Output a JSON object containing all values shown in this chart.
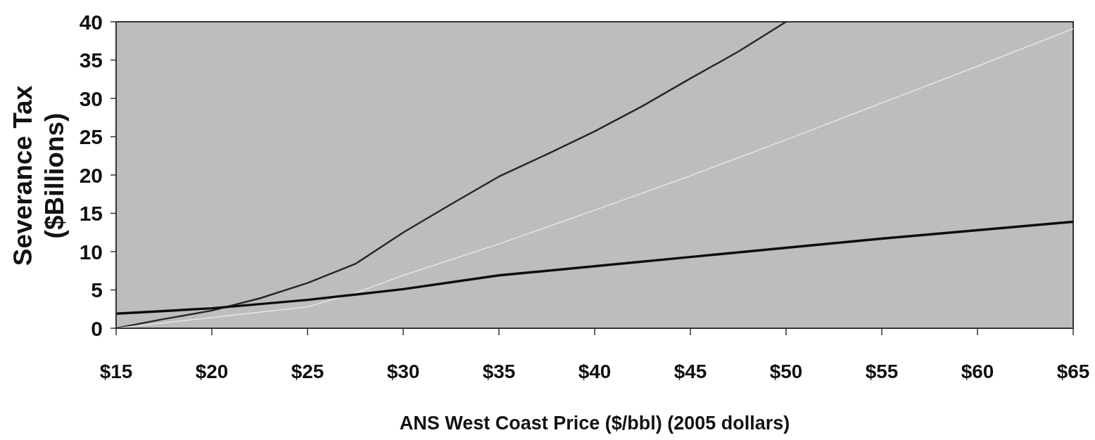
{
  "chart_data": {
    "type": "line",
    "xlabel": "ANS West Coast Price ($/bbl) (2005 dollars)",
    "ylabel": "Severance Tax\n($Billions)",
    "xlim": [
      15,
      65
    ],
    "xticks": [
      {
        "value": 15,
        "label": "$15"
      },
      {
        "value": 20,
        "label": "$20"
      },
      {
        "value": 25,
        "label": "$25"
      },
      {
        "value": 30,
        "label": "$30"
      },
      {
        "value": 35,
        "label": "$35"
      },
      {
        "value": 40,
        "label": "$40"
      },
      {
        "value": 45,
        "label": "$45"
      },
      {
        "value": 50,
        "label": "$50"
      },
      {
        "value": 55,
        "label": "$55"
      },
      {
        "value": 60,
        "label": "$60"
      },
      {
        "value": 65,
        "label": "$65"
      }
    ],
    "ylim": [
      0,
      40
    ],
    "yticks": [
      0,
      5,
      10,
      15,
      20,
      25,
      30,
      35,
      40
    ],
    "series": [
      {
        "color": "#262626",
        "x": [
          15,
          17.5,
          20,
          22.5,
          25,
          27.5,
          30,
          32.5,
          35,
          37.5,
          40,
          42.5,
          45,
          47.5,
          50
        ],
        "values": [
          0,
          1.2,
          2.3,
          3.9,
          5.9,
          8.4,
          12.5,
          16.2,
          19.8,
          22.7,
          25.7,
          29.0,
          32.6,
          36.1,
          40
        ]
      },
      {
        "color": "#e6e6e6",
        "x": [
          15,
          20,
          25,
          27.5,
          30,
          35,
          40,
          45,
          50,
          55,
          60,
          65
        ],
        "values": [
          0,
          1.4,
          2.8,
          4.6,
          6.9,
          11.0,
          15.4,
          19.9,
          24.6,
          29.4,
          34.2,
          39.1
        ]
      },
      {
        "color": "#0d0d0d",
        "x": [
          15,
          20,
          25,
          30,
          35,
          40,
          45,
          50,
          55,
          60,
          65
        ],
        "values": [
          1.9,
          2.6,
          3.7,
          5.1,
          6.9,
          8.1,
          9.3,
          10.5,
          11.7,
          12.8,
          13.9
        ]
      }
    ]
  }
}
